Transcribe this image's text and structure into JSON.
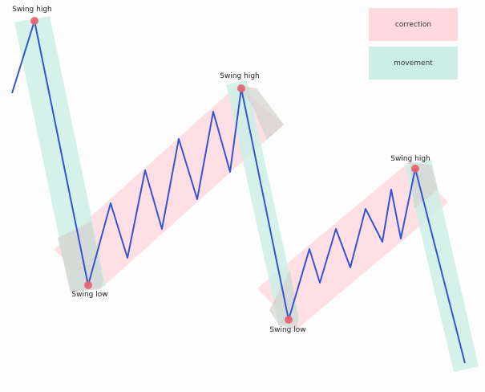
{
  "legend": {
    "correction": "correction",
    "movement": "movement"
  },
  "labels": {
    "swing_high": "Swing high",
    "swing_low": "Swing low"
  },
  "colors": {
    "line": "#3355d4",
    "point": "#e8606b",
    "correction_fill": "#ffd9de",
    "movement_fill": "#cdeee6",
    "overlap_fill": "#d4d4d0"
  }
}
